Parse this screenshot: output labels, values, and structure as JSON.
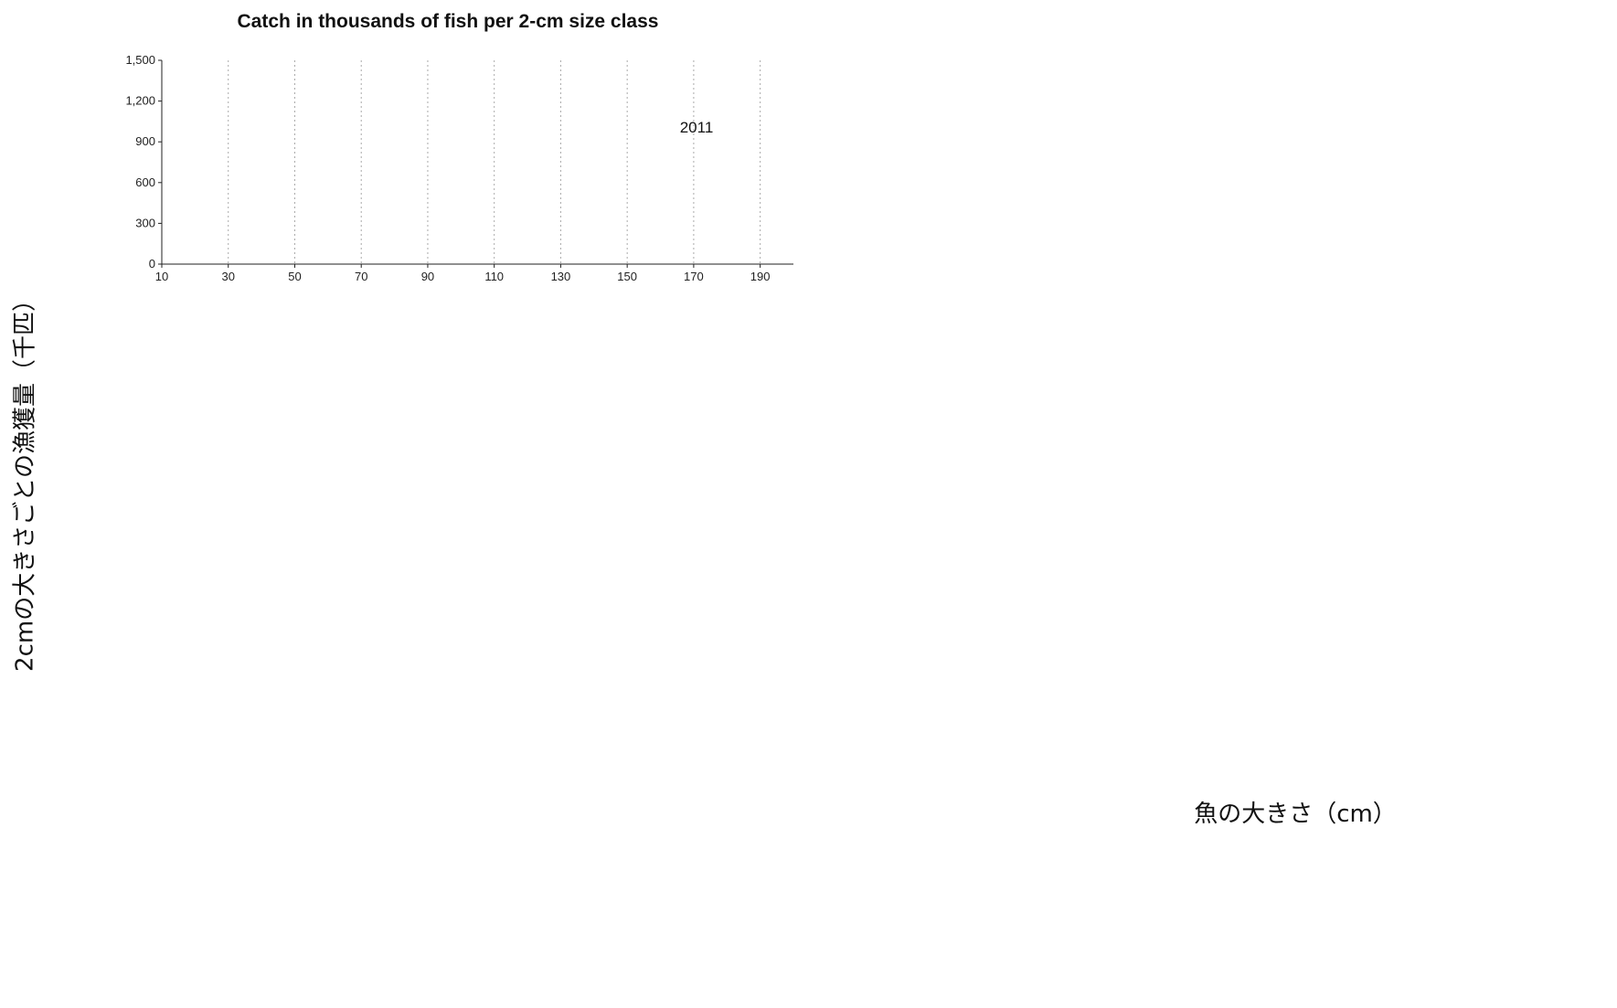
{
  "title": "Catch in thousands of fish per 2-cm size class",
  "ylabel": "2cmの大きさごとの漁獲量（千匹）",
  "xlabel": "魚の大きさ（cm）",
  "colors": {
    "yellow": "#F7F21E",
    "cyan": "#22E5FA",
    "navy": "#0D1A66",
    "green": "#2FD62A",
    "frame": "#222222",
    "gridline": "#AAAAAA"
  },
  "chart_data": [
    {
      "type": "bar",
      "stacked": true,
      "year": "2011",
      "x_start": 10,
      "bin_width": 2,
      "xlim": [
        10,
        200
      ],
      "ylim": [
        0,
        1500
      ],
      "xticks": [
        "10",
        "30",
        "50",
        "70",
        "90",
        "110",
        "130",
        "150",
        "170",
        "190"
      ],
      "yticks": [
        "0",
        "300",
        "600",
        "900",
        "1,200",
        "1,500"
      ],
      "series": [
        {
          "color": "yellow",
          "values": [
            0,
            0,
            0,
            0,
            0,
            0,
            0,
            0,
            0,
            0,
            0,
            0,
            0,
            0,
            0,
            0,
            0,
            0,
            0,
            0,
            0,
            0,
            0,
            0,
            0,
            0,
            0,
            0,
            0,
            0,
            0,
            0,
            0,
            0,
            0,
            0,
            0,
            0,
            0,
            0,
            0,
            0,
            0,
            0,
            0,
            0,
            0,
            0,
            0,
            0,
            0,
            0,
            0,
            0,
            0,
            0,
            0,
            0,
            0,
            0,
            0,
            0,
            0,
            0,
            0,
            0,
            0,
            0,
            0,
            0,
            0,
            0,
            0,
            0,
            0,
            0,
            0,
            0,
            0,
            0,
            0,
            0,
            0,
            0,
            0,
            0,
            0,
            0,
            0,
            0,
            0,
            0,
            0,
            0,
            0
          ]
        },
        {
          "color": "navy",
          "values": [
            0,
            0,
            0,
            0,
            0,
            0,
            0,
            0,
            0,
            0,
            0,
            0,
            0,
            0,
            0,
            0,
            0,
            0,
            0,
            0,
            0,
            0,
            0,
            0,
            0,
            0,
            0,
            0,
            0,
            0,
            0,
            0,
            0,
            0,
            0,
            0,
            0,
            0,
            0,
            0,
            0,
            0,
            0,
            0,
            0,
            0,
            0,
            0,
            0,
            0,
            0,
            0,
            0,
            0,
            0,
            0,
            0,
            0,
            0,
            0,
            0,
            0,
            0,
            0,
            0,
            0,
            0,
            0,
            0,
            0,
            0,
            0,
            0,
            0,
            0,
            0,
            0,
            0,
            0,
            0,
            0,
            0,
            0,
            0,
            0,
            0,
            0,
            0,
            0,
            0,
            0,
            0,
            0,
            0,
            0
          ]
        },
        {
          "color": "green",
          "values": [
            0,
            0,
            0,
            0,
            0,
            0,
            0,
            0,
            0,
            0,
            0,
            0,
            0,
            0,
            0,
            0,
            0,
            0,
            0,
            0,
            0,
            0,
            0,
            0,
            0,
            0,
            0,
            0,
            0,
            0,
            0,
            0,
            0,
            0,
            0,
            0,
            0,
            0,
            0,
            0,
            0,
            0,
            0,
            0,
            0,
            0,
            0,
            0,
            0,
            0,
            0,
            0,
            0,
            0,
            0,
            0,
            0,
            0,
            0,
            0,
            0,
            0,
            0,
            0,
            0,
            0,
            0,
            0,
            0,
            0,
            0,
            0,
            0,
            0,
            0,
            0,
            0,
            0,
            0,
            0,
            0,
            0,
            0,
            0,
            0,
            0,
            0,
            0,
            0,
            0,
            0,
            0,
            0,
            0,
            0
          ]
        },
        {
          "color": "cyan",
          "values": [
            0,
            0,
            0,
            0,
            0,
            0,
            0,
            0,
            0,
            0,
            0,
            0,
            0,
            0,
            0,
            0,
            0,
            0,
            0,
            0,
            0,
            0,
            0,
            0,
            0,
            0,
            0,
            0,
            0,
            0,
            0,
            0,
            0,
            0,
            0,
            0,
            0,
            0,
            0,
            0,
            0,
            0,
            0,
            0,
            0,
            0,
            0,
            0,
            0,
            0,
            0,
            0,
            0,
            0,
            0,
            0,
            0,
            0,
            0,
            0,
            0,
            0,
            0,
            0,
            0,
            0,
            0,
            0,
            0,
            0,
            0,
            0,
            0,
            0,
            0,
            0,
            0,
            0,
            0,
            0,
            0,
            0,
            0,
            0,
            0,
            0,
            0,
            0,
            0,
            0,
            0,
            0,
            0,
            0,
            0
          ]
        }
      ]
    }
  ]
}
